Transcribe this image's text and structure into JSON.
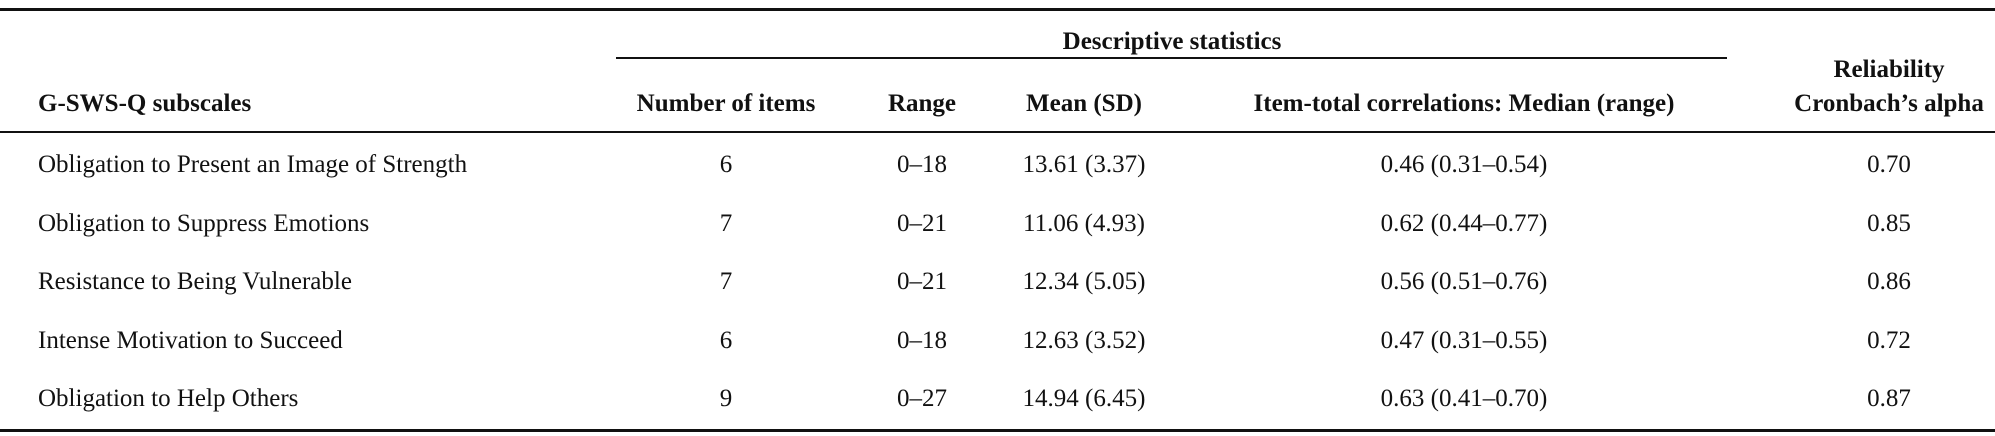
{
  "table": {
    "group_header": "Descriptive statistics",
    "reliability_header": [
      "Reliability",
      "Cronbach’s alpha"
    ],
    "headers": [
      "G-SWS-Q subscales",
      "Number of items",
      "Range",
      "Mean (SD)",
      "Item-total correlations: Median (range)"
    ],
    "rows": [
      [
        "Obligation to Present an Image of Strength",
        "6",
        "0–18",
        "13.61 (3.37)",
        "0.46 (0.31–0.54)",
        "0.70"
      ],
      [
        "Obligation to Suppress Emotions",
        "7",
        "0–21",
        "11.06 (4.93)",
        "0.62 (0.44–0.77)",
        "0.85"
      ],
      [
        "Resistance to Being Vulnerable",
        "7",
        "0–21",
        "12.34 (5.05)",
        "0.56 (0.51–0.76)",
        "0.86"
      ],
      [
        "Intense Motivation to Succeed",
        "6",
        "0–18",
        "12.63 (3.52)",
        "0.47 (0.31–0.55)",
        "0.72"
      ],
      [
        "Obligation to Help Others",
        "9",
        "0–27",
        "14.94 (6.45)",
        "0.63 (0.41–0.70)",
        "0.87"
      ]
    ]
  }
}
